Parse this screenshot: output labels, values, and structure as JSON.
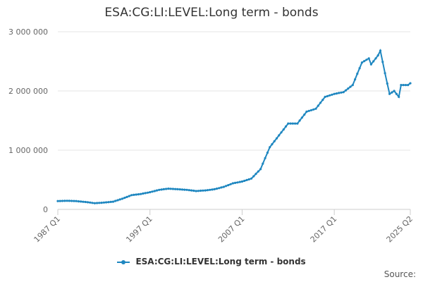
{
  "chart_data": {
    "type": "line",
    "title": "ESA:CG:LI:LEVEL:Long term - bonds",
    "xlabel": "",
    "ylabel": "",
    "ylim": [
      0,
      3000000
    ],
    "yticks": [
      {
        "value": 0,
        "label": "0"
      },
      {
        "value": 1000000,
        "label": "1 000 000"
      },
      {
        "value": 2000000,
        "label": "2 000 000"
      },
      {
        "value": 3000000,
        "label": "3 000 000"
      }
    ],
    "xticks": [
      {
        "value": 1987.0,
        "label": "1987 Q1"
      },
      {
        "value": 1997.0,
        "label": "1997 Q1"
      },
      {
        "value": 2007.0,
        "label": "2007 Q1"
      },
      {
        "value": 2017.0,
        "label": "2017 Q1"
      },
      {
        "value": 2025.25,
        "label": "2025 Q2"
      }
    ],
    "xlim": [
      1987.0,
      2025.25
    ],
    "grid": true,
    "legend_position": "bottom",
    "series": [
      {
        "name": "ESA:CG:LI:LEVEL:Long term - bonds",
        "color": "#1f87c0",
        "anchors": [
          [
            1987.0,
            140000
          ],
          [
            1988.0,
            145000
          ],
          [
            1989.0,
            140000
          ],
          [
            1990.0,
            125000
          ],
          [
            1991.0,
            105000
          ],
          [
            1992.0,
            115000
          ],
          [
            1993.0,
            130000
          ],
          [
            1994.0,
            180000
          ],
          [
            1995.0,
            240000
          ],
          [
            1996.0,
            260000
          ],
          [
            1997.0,
            290000
          ],
          [
            1998.0,
            330000
          ],
          [
            1999.0,
            350000
          ],
          [
            2000.0,
            340000
          ],
          [
            2001.0,
            330000
          ],
          [
            2002.0,
            310000
          ],
          [
            2003.0,
            320000
          ],
          [
            2004.0,
            340000
          ],
          [
            2005.0,
            380000
          ],
          [
            2006.0,
            440000
          ],
          [
            2007.0,
            470000
          ],
          [
            2008.0,
            520000
          ],
          [
            2009.0,
            680000
          ],
          [
            2010.0,
            1050000
          ],
          [
            2011.0,
            1250000
          ],
          [
            2012.0,
            1450000
          ],
          [
            2013.0,
            1450000
          ],
          [
            2014.0,
            1650000
          ],
          [
            2015.0,
            1700000
          ],
          [
            2016.0,
            1900000
          ],
          [
            2017.0,
            1950000
          ],
          [
            2018.0,
            1980000
          ],
          [
            2019.0,
            2100000
          ],
          [
            2020.0,
            2480000
          ],
          [
            2020.75,
            2550000
          ],
          [
            2021.0,
            2450000
          ],
          [
            2021.75,
            2600000
          ],
          [
            2022.0,
            2680000
          ],
          [
            2022.5,
            2300000
          ],
          [
            2023.0,
            1950000
          ],
          [
            2023.5,
            2000000
          ],
          [
            2024.0,
            1900000
          ],
          [
            2024.25,
            2100000
          ],
          [
            2025.0,
            2100000
          ],
          [
            2025.25,
            2130000
          ]
        ]
      }
    ]
  },
  "source_note": "Source:"
}
